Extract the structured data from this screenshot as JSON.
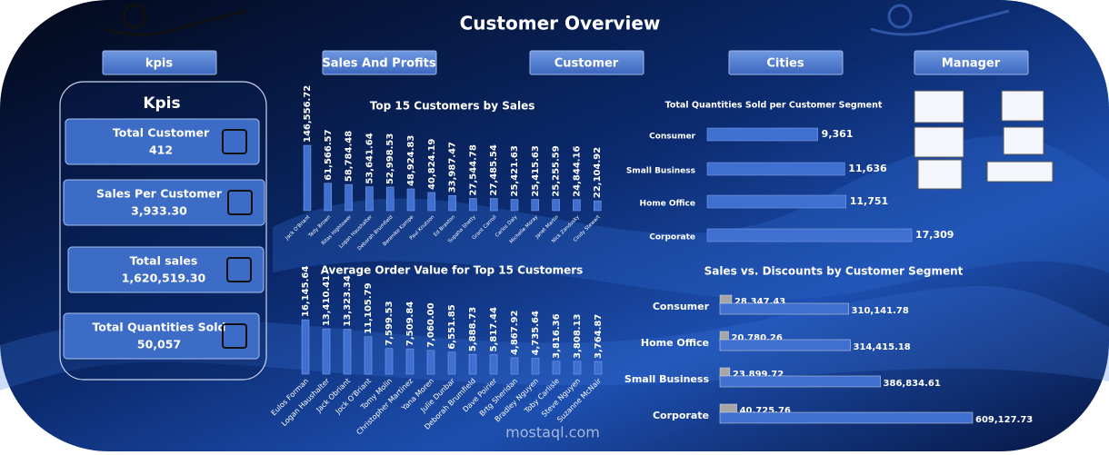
{
  "title": "Customer Overview",
  "nav": [
    "kpis",
    "Sales And Profits",
    "Customer",
    "Cities",
    "Manager"
  ],
  "kpis": {
    "title": "Kpis",
    "items": [
      {
        "label": "Total Customer",
        "value": "412"
      },
      {
        "label": "Sales Per Customer",
        "value": "3,933.30"
      },
      {
        "label": "Total sales",
        "value": "1,620,519.30"
      },
      {
        "label": "Total Quantities Sold",
        "value": "50,057"
      }
    ]
  },
  "watermark": "mostaql.com",
  "chart_data": [
    {
      "type": "bar",
      "title": "Top 15 Customers by Sales",
      "color": "#3f6fd1",
      "categories": [
        "Jack O'Briant",
        "Tedy Brown",
        "Ritas Hightower",
        "Logan Haushalter",
        "Deborah Brumfield",
        "Berenike Kampe",
        "Paul Knutson",
        "Ed Braxton",
        "Supaha Shetty",
        "Grant Carroll",
        "Carlos Daly",
        "Michelle Moray",
        "Janet Martin",
        "Nick Zandusky",
        "Cindy Stewart"
      ],
      "values": [
        146556.72,
        61566.57,
        58784.48,
        53641.64,
        52998.53,
        48924.83,
        40824.19,
        33987.47,
        27544.78,
        27485.54,
        25421.63,
        25415.63,
        25255.59,
        24844.16,
        22104.92
      ],
      "value_labels": [
        "146,556.72",
        "61,566.57",
        "58,784.48",
        "53,641.64",
        "52,998.53",
        "48,924.83",
        "40,824.19",
        "33,987.47",
        "27,544.78",
        "27,485.54",
        "25,421.63",
        "25,415.63",
        "25,255.59",
        "24,844.16",
        "22,104.92"
      ]
    },
    {
      "type": "bar",
      "title": "Average Order Value for Top 15 Customers",
      "color": "#3f6fd1",
      "categories": [
        "Eulos Forman",
        "Logan Haushalter",
        "Jack Obriant",
        "Jock O'Briant",
        "Tomy Molin",
        "Christopher Martinez",
        "Yana Moren",
        "Julie Dunbar",
        "Deborah Brumfield",
        "Dave Poirier",
        "Brtg Sheridan",
        "Bradley Nguyen",
        "Toby Carlisle",
        "Steve Nguyen",
        "Suzanne McNair"
      ],
      "values": [
        16145.64,
        13410.41,
        13323.34,
        11105.79,
        7599.53,
        7509.84,
        7060.0,
        6551.85,
        5888.73,
        5817.44,
        4867.92,
        4735.64,
        3816.36,
        3808.13,
        3764.87
      ],
      "value_labels": [
        "16,145.64",
        "13,410.41",
        "13,323.34",
        "11,105.79",
        "7,599.53",
        "7,509.84",
        "7,060.00",
        "6,551.85",
        "5,888.73",
        "5,817.44",
        "4,867.92",
        "4,735.64",
        "3,816.36",
        "3,808.13",
        "3,764.87"
      ]
    },
    {
      "type": "hbar",
      "title": "Total Quantities Sold per Customer Segment",
      "color": "#3f6fd1",
      "categories": [
        "Consumer",
        "Small Business",
        "Home Office",
        "Corporate"
      ],
      "values": [
        9361,
        11636,
        11751,
        17309
      ],
      "value_labels": [
        "9,361",
        "11,636",
        "11,751",
        "17,309"
      ]
    },
    {
      "type": "hbar",
      "title": "Sales vs. Discounts by Customer Segment",
      "categories": [
        "Consumer",
        "Home Office",
        "Small Business",
        "Corporate"
      ],
      "series": [
        {
          "color": "#a6a6a6",
          "values": [
            28347.43,
            20780.26,
            23899.72,
            40725.76
          ],
          "value_labels": [
            "28,347.43",
            "20,780.26",
            "23,899.72",
            "40,725.76"
          ]
        },
        {
          "color": "#3f6fd1",
          "values": [
            310141.78,
            314415.18,
            386834.61,
            609127.73
          ],
          "value_labels": [
            "310,141.78",
            "314,415.18",
            "386,834.61",
            "609,127.73"
          ]
        }
      ]
    }
  ]
}
